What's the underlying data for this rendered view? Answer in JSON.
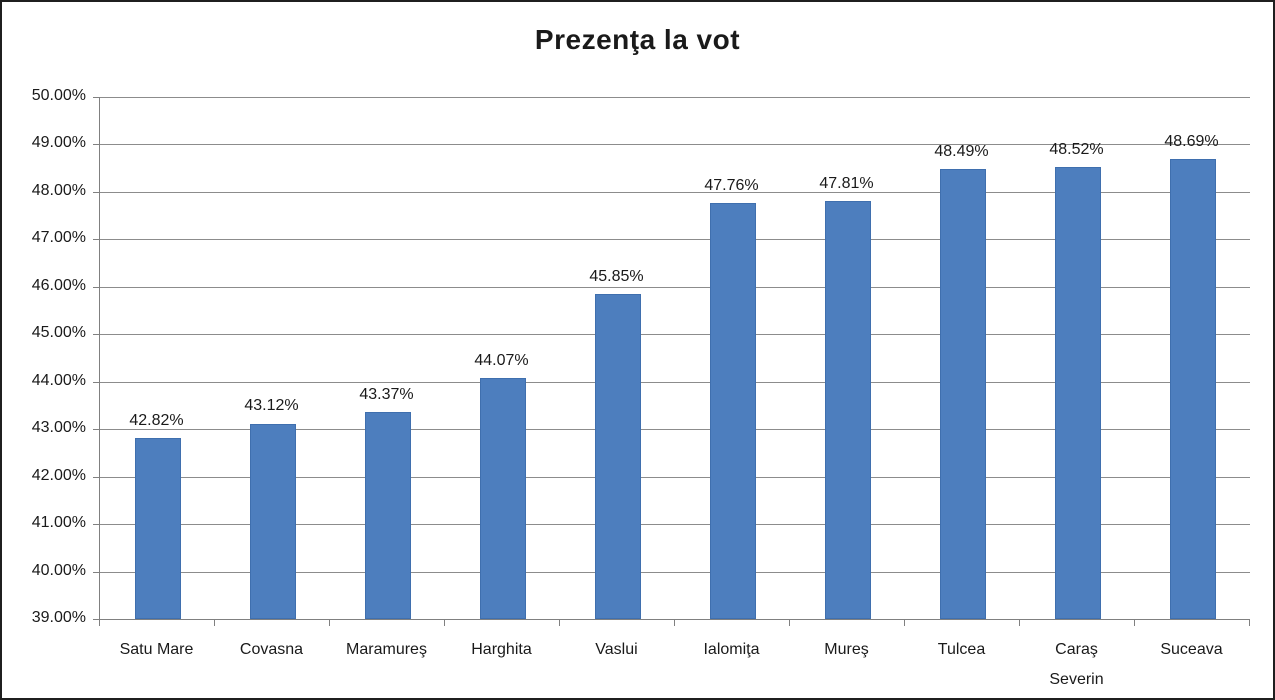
{
  "chart_data": {
    "type": "bar",
    "title": "Prezenţa la vot",
    "categories": [
      "Satu Mare",
      "Covasna",
      "Maramureş",
      "Harghita",
      "Vaslui",
      "Ialomiţa",
      "Mureş",
      "Tulcea",
      "Caraş Severin",
      "Suceava"
    ],
    "values": [
      42.82,
      43.12,
      43.37,
      44.07,
      45.85,
      47.76,
      47.81,
      48.49,
      48.52,
      48.69
    ],
    "value_labels": [
      "42.82%",
      "43.12%",
      "43.37%",
      "44.07%",
      "45.85%",
      "47.76%",
      "47.81%",
      "48.49%",
      "48.52%",
      "48.69%"
    ],
    "xlabel": "",
    "ylabel": "",
    "ylim": [
      39,
      50
    ],
    "ytick_step": 1,
    "ytick_labels": [
      "39.00%",
      "40.00%",
      "41.00%",
      "42.00%",
      "43.00%",
      "44.00%",
      "45.00%",
      "46.00%",
      "47.00%",
      "48.00%",
      "49.00%",
      "50.00%"
    ],
    "grid": "horizontal",
    "legend": "none",
    "bar_color": "#4d7ebe",
    "gridline_color": "#8c8c8c",
    "text_color": "#1a1a1a"
  }
}
